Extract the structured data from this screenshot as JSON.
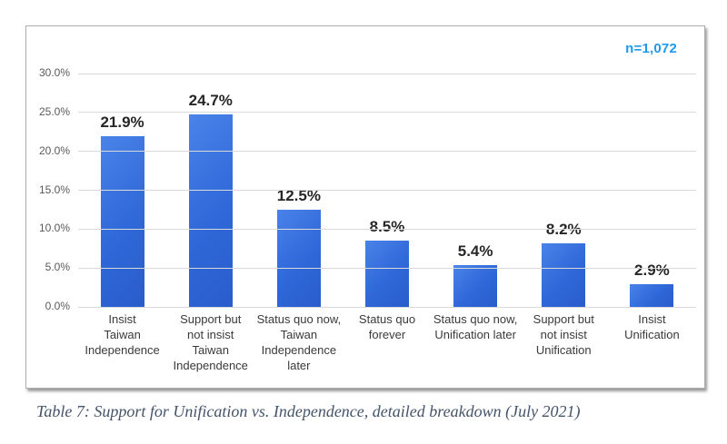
{
  "chart_data": {
    "type": "bar",
    "title": "",
    "annotation": "n=1,072",
    "annotation_color": "#1b9af0",
    "categories": [
      [
        "Insist",
        "Taiwan",
        "Independence"
      ],
      [
        "Support but",
        "not insist",
        "Taiwan",
        "Independence"
      ],
      [
        "Status quo now,",
        "Taiwan",
        "Independence",
        "later"
      ],
      [
        "Status quo",
        "forever"
      ],
      [
        "Status quo now,",
        "Unification later"
      ],
      [
        "Support but",
        "not insist",
        "Unification"
      ],
      [
        "Insist",
        "Unification"
      ]
    ],
    "values": [
      21.9,
      24.7,
      12.5,
      8.5,
      5.4,
      8.2,
      2.9
    ],
    "value_labels": [
      "21.9%",
      "24.7%",
      "12.5%",
      "8.5%",
      "5.4%",
      "8.2%",
      "2.9%"
    ],
    "xlabel": "",
    "ylabel": "",
    "ylim": [
      0,
      30
    ],
    "ytick_step": 5,
    "yticks": [
      "0.0%",
      "5.0%",
      "10.0%",
      "15.0%",
      "20.0%",
      "25.0%",
      "30.0%"
    ],
    "grid": true,
    "legend": "none",
    "bar_color": "#2f68d9",
    "bar_gradient_top": "#4a83e8",
    "bar_gradient_bottom": "#2a5ccb"
  },
  "caption": {
    "text": "Table 7: Support for Unification vs. Independence, detailed breakdown (July 2021)",
    "color": "#44546a"
  }
}
